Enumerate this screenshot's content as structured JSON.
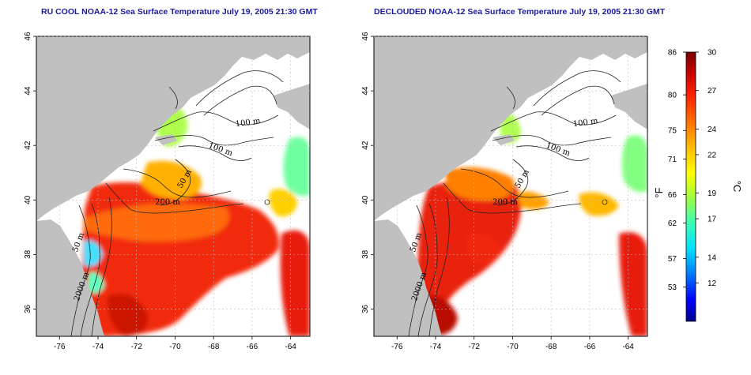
{
  "titles": {
    "left": "RU COOL NOAA-12 Sea Surface Temperature July 19, 2005 21:30 GMT",
    "right": "DECLOUDED NOAA-12 Sea Surface Temperature July 19, 2005 21:30 GMT"
  },
  "axes": {
    "lon_ticks": [
      "-76",
      "-74",
      "-72",
      "-70",
      "-68",
      "-66",
      "-64"
    ],
    "lat_ticks": [
      "36",
      "38",
      "40",
      "42",
      "44",
      "46"
    ],
    "lon_values": [
      -76,
      -74,
      -72,
      -70,
      -68,
      -66,
      -64
    ],
    "lat_values": [
      36,
      38,
      40,
      42,
      44,
      46
    ],
    "lon_range": [
      -77.2,
      -63.0
    ],
    "lat_range": [
      35.0,
      46.0
    ]
  },
  "contour_labels": [
    "100 m",
    "100 m",
    "50 m",
    "200 m",
    "2000 m",
    "50 m"
  ],
  "colorbar": {
    "fahrenheit_label": "°F",
    "celsius_label": "°C",
    "fahrenheit_ticks": [
      "86",
      "80",
      "75",
      "71",
      "66",
      "62",
      "57",
      "53"
    ],
    "fahrenheit_values": [
      86,
      80,
      75,
      71,
      66,
      62,
      57,
      53
    ],
    "celsius_ticks": [
      "30",
      "27",
      "24",
      "22",
      "19",
      "17",
      "14",
      "12"
    ],
    "celsius_values": [
      30,
      27,
      24,
      22,
      19,
      17,
      14,
      12
    ],
    "range_c": [
      9,
      30
    ],
    "colors": [
      "#00008b",
      "#0000ff",
      "#0080ff",
      "#00e0ff",
      "#40ffb0",
      "#a0ff40",
      "#ffff00",
      "#ffc000",
      "#ff7000",
      "#ff2000",
      "#c00000",
      "#7a0000"
    ]
  },
  "colors": {
    "land": "#c0c0c0",
    "title": "#1a1aa0",
    "grid": "#bbbbbb"
  }
}
